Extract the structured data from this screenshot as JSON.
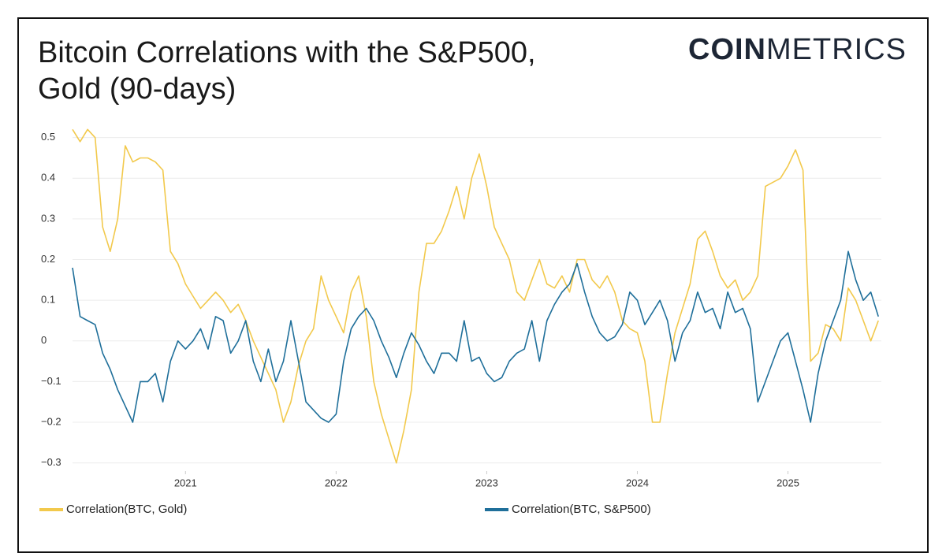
{
  "chart_data": {
    "type": "line",
    "title": "Bitcoin Correlations with the S&P500, Gold (90-days)",
    "logo": {
      "bold": "COIN",
      "light": "METRICS"
    },
    "x": [
      2020.25,
      2020.3,
      2020.35,
      2020.4,
      2020.45,
      2020.5,
      2020.55,
      2020.6,
      2020.65,
      2020.7,
      2020.75,
      2020.8,
      2020.85,
      2020.9,
      2020.95,
      2021.0,
      2021.05,
      2021.1,
      2021.15,
      2021.2,
      2021.25,
      2021.3,
      2021.35,
      2021.4,
      2021.45,
      2021.5,
      2021.55,
      2021.6,
      2021.65,
      2021.7,
      2021.75,
      2021.8,
      2021.85,
      2021.9,
      2021.95,
      2022.0,
      2022.05,
      2022.1,
      2022.15,
      2022.2,
      2022.25,
      2022.3,
      2022.35,
      2022.4,
      2022.45,
      2022.5,
      2022.55,
      2022.6,
      2022.65,
      2022.7,
      2022.75,
      2022.8,
      2022.85,
      2022.9,
      2022.95,
      2023.0,
      2023.05,
      2023.1,
      2023.15,
      2023.2,
      2023.25,
      2023.3,
      2023.35,
      2023.4,
      2023.45,
      2023.5,
      2023.55,
      2023.6,
      2023.65,
      2023.7,
      2023.75,
      2023.8,
      2023.85,
      2023.9,
      2023.95,
      2024.0,
      2024.05,
      2024.1,
      2024.15,
      2024.2,
      2024.25,
      2024.3,
      2024.35,
      2024.4,
      2024.45,
      2024.5,
      2024.55,
      2024.6,
      2024.65,
      2024.7,
      2024.75,
      2024.8,
      2024.85,
      2024.9,
      2024.95,
      2025.0,
      2025.05,
      2025.1,
      2025.15,
      2025.2,
      2025.25,
      2025.3,
      2025.35,
      2025.4,
      2025.45,
      2025.5,
      2025.55,
      2025.6
    ],
    "series": [
      {
        "name": "Correlation(BTC, Gold)",
        "color": "#f2c94c",
        "values": [
          0.52,
          0.49,
          0.52,
          0.5,
          0.28,
          0.22,
          0.3,
          0.48,
          0.44,
          0.45,
          0.45,
          0.44,
          0.42,
          0.22,
          0.19,
          0.14,
          0.11,
          0.08,
          0.1,
          0.12,
          0.1,
          0.07,
          0.09,
          0.05,
          0.0,
          -0.04,
          -0.08,
          -0.12,
          -0.2,
          -0.15,
          -0.06,
          0.0,
          0.03,
          0.16,
          0.1,
          0.06,
          0.02,
          0.12,
          0.16,
          0.06,
          -0.1,
          -0.18,
          -0.24,
          -0.3,
          -0.22,
          -0.12,
          0.12,
          0.24,
          0.24,
          0.27,
          0.32,
          0.38,
          0.3,
          0.4,
          0.46,
          0.38,
          0.28,
          0.24,
          0.2,
          0.12,
          0.1,
          0.15,
          0.2,
          0.14,
          0.13,
          0.16,
          0.12,
          0.2,
          0.2,
          0.15,
          0.13,
          0.16,
          0.12,
          0.05,
          0.03,
          0.02,
          -0.05,
          -0.2,
          -0.2,
          -0.08,
          0.02,
          0.08,
          0.14,
          0.25,
          0.27,
          0.22,
          0.16,
          0.13,
          0.15,
          0.1,
          0.12,
          0.16,
          0.38,
          0.39,
          0.4,
          0.43,
          0.47,
          0.42,
          -0.05,
          -0.03,
          0.04,
          0.03,
          0.0,
          0.13,
          0.1,
          0.05,
          0.0,
          0.05
        ]
      },
      {
        "name": "Correlation(BTC, S&P500)",
        "color": "#1f6f9a",
        "values": [
          0.18,
          0.06,
          0.05,
          0.04,
          -0.03,
          -0.07,
          -0.12,
          -0.16,
          -0.2,
          -0.1,
          -0.1,
          -0.08,
          -0.15,
          -0.05,
          0.0,
          -0.02,
          0.0,
          0.03,
          -0.02,
          0.06,
          0.05,
          -0.03,
          0.0,
          0.05,
          -0.05,
          -0.1,
          -0.02,
          -0.1,
          -0.05,
          0.05,
          -0.05,
          -0.15,
          -0.17,
          -0.19,
          -0.2,
          -0.18,
          -0.05,
          0.03,
          0.06,
          0.08,
          0.05,
          0.0,
          -0.04,
          -0.09,
          -0.03,
          0.02,
          -0.01,
          -0.05,
          -0.08,
          -0.03,
          -0.03,
          -0.05,
          0.05,
          -0.05,
          -0.04,
          -0.08,
          -0.1,
          -0.09,
          -0.05,
          -0.03,
          -0.02,
          0.05,
          -0.05,
          0.05,
          0.09,
          0.12,
          0.14,
          0.19,
          0.12,
          0.06,
          0.02,
          0.0,
          0.01,
          0.04,
          0.12,
          0.1,
          0.04,
          0.07,
          0.1,
          0.05,
          -0.05,
          0.02,
          0.05,
          0.12,
          0.07,
          0.08,
          0.03,
          0.12,
          0.07,
          0.08,
          0.03,
          -0.15,
          -0.1,
          -0.05,
          0.0,
          0.02,
          -0.05,
          -0.12,
          -0.2,
          -0.08,
          0.0,
          0.05,
          0.1,
          0.22,
          0.15,
          0.1,
          0.12,
          0.06
        ]
      }
    ],
    "xlim": [
      2020.25,
      2025.62
    ],
    "xticks": [
      2021,
      2022,
      2023,
      2024,
      2025
    ],
    "ylim": [
      -0.32,
      0.54
    ],
    "yticks": [
      {
        "value": -0.3,
        "label": "−0.3"
      },
      {
        "value": -0.2,
        "label": "−0.2"
      },
      {
        "value": -0.1,
        "label": "−0.1"
      },
      0,
      0.1,
      0.2,
      0.3,
      0.4,
      0.5
    ],
    "grid": true
  }
}
